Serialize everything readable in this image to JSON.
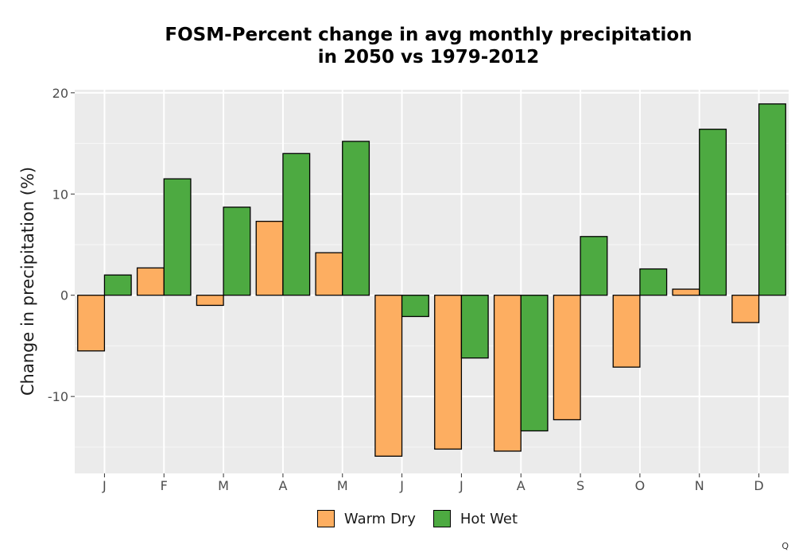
{
  "chart_data": {
    "type": "bar",
    "title_lines": [
      "FOSM-Percent change in avg monthly precipitation",
      "in 2050 vs 1979-2012"
    ],
    "xlabel": "",
    "ylabel": "Change in precipitation (%)",
    "categories": [
      "J",
      "F",
      "M",
      "A",
      "M",
      "J",
      "J",
      "A",
      "S",
      "O",
      "N",
      "D"
    ],
    "series": [
      {
        "name": "Warm Dry",
        "color": "#FDAE61",
        "values": [
          -5.5,
          2.7,
          -1.0,
          7.3,
          4.2,
          -15.9,
          -15.2,
          -15.4,
          -12.3,
          -7.1,
          0.6,
          -2.7
        ]
      },
      {
        "name": "Hot Wet",
        "color": "#4DAA41",
        "values": [
          2.0,
          11.5,
          8.7,
          14.0,
          15.2,
          -2.1,
          -6.2,
          -13.4,
          5.8,
          2.6,
          16.4,
          18.9
        ]
      }
    ],
    "ylim": [
      -17.6,
      20.3
    ],
    "yticks": [
      20,
      10,
      0,
      -10
    ],
    "ytick_labels": [
      "20",
      "10",
      "0",
      "-10"
    ],
    "grid": true,
    "legend_position": "bottom",
    "panel_background": "#EBEBEB"
  },
  "corner_mark": "Q"
}
